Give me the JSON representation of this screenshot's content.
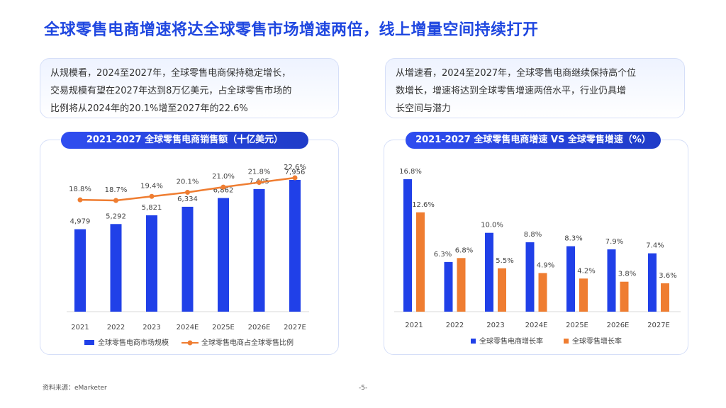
{
  "page": {
    "title": "全球零售电商增速将达全球零售市场增速两倍，线上增量空间持续打开",
    "left_box": {
      "line1": "从规模看，2024至2027年，全球零售电商保持稳定增长，",
      "line2": "交易规模有望在2027年达到8万亿美元，占全球零售市场的",
      "line3": "比例将从2024年的20.1%增至2027年的22.6%"
    },
    "right_box": {
      "line1": "从增速看，2024至2027年，全球零售电商继续保持高个位",
      "line2": "数增长，增速将达到全球零售增速两倍水平，行业仍具增",
      "line3": "长空间与潜力"
    },
    "source": "资料来源：eMarketer",
    "page_number": "-5-"
  },
  "colors": {
    "blue": "#2040e8",
    "orange": "#ef7d31",
    "title": "#1f47e0"
  },
  "chart_data": [
    {
      "type": "bar",
      "title": "2021-2027 全球零售电商销售额（十亿美元）",
      "categories": [
        "2021",
        "2022",
        "2023",
        "2024E",
        "2025E",
        "2026E",
        "2027E"
      ],
      "series": [
        {
          "name": "全球零售电商市场规模",
          "type": "bar",
          "values": [
            4979,
            5292,
            5821,
            6334,
            6862,
            7405,
            7956
          ],
          "labels": [
            "4,979",
            "5,292",
            "5,821",
            "6,334",
            "6,862",
            "7,405",
            "7,956"
          ]
        },
        {
          "name": "全球零售电商占全球零售比例",
          "type": "line",
          "values": [
            18.8,
            18.7,
            19.4,
            20.1,
            21.0,
            21.8,
            22.6
          ],
          "labels": [
            "18.8%",
            "18.7%",
            "19.4%",
            "20.1%",
            "21.0%",
            "21.8%",
            "22.6%"
          ]
        }
      ],
      "ylim": [
        0,
        9000
      ],
      "line_ylim": [
        10,
        24
      ],
      "legend": "bottom"
    },
    {
      "type": "bar",
      "title": "2021-2027 全球零售电商增速 VS 全球零售增速（%）",
      "categories": [
        "2021",
        "2022",
        "2023",
        "2024E",
        "2025E",
        "2026E",
        "2027E"
      ],
      "series": [
        {
          "name": "全球零售电商增长率",
          "values": [
            16.8,
            6.3,
            10.0,
            8.8,
            8.3,
            7.9,
            7.4
          ],
          "labels": [
            "16.8%",
            "6.3%",
            "10.0%",
            "8.8%",
            "8.3%",
            "7.9%",
            "7.4%"
          ]
        },
        {
          "name": "全球零售增长率",
          "values": [
            12.6,
            6.8,
            5.5,
            4.9,
            4.2,
            3.8,
            3.6
          ],
          "labels": [
            "12.6%",
            "6.8%",
            "5.5%",
            "4.9%",
            "4.2%",
            "3.8%",
            "3.6%"
          ]
        }
      ],
      "ylim": [
        0,
        18
      ],
      "legend": "bottom"
    }
  ]
}
